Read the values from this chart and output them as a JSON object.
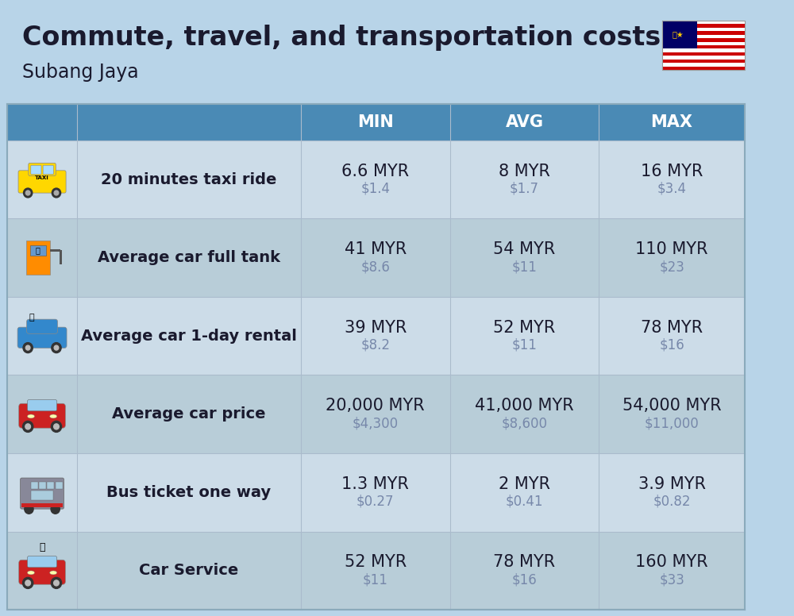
{
  "title": "Commute, travel, and transportation costs",
  "subtitle": "Subang Jaya",
  "background_color": "#b8d4e8",
  "header_bg_color": "#4a8ab5",
  "header_text_color": "#ffffff",
  "row_color_odd": "#ccdce8",
  "row_color_even": "#b8cdd8",
  "col_header_labels": [
    "MIN",
    "AVG",
    "MAX"
  ],
  "rows": [
    {
      "label": "20 minutes taxi ride",
      "min_myr": "6.6 MYR",
      "min_usd": "$1.4",
      "avg_myr": "8 MYR",
      "avg_usd": "$1.7",
      "max_myr": "16 MYR",
      "max_usd": "$3.4"
    },
    {
      "label": "Average car full tank",
      "min_myr": "41 MYR",
      "min_usd": "$8.6",
      "avg_myr": "54 MYR",
      "avg_usd": "$11",
      "max_myr": "110 MYR",
      "max_usd": "$23"
    },
    {
      "label": "Average car 1-day rental",
      "min_myr": "39 MYR",
      "min_usd": "$8.2",
      "avg_myr": "52 MYR",
      "avg_usd": "$11",
      "max_myr": "78 MYR",
      "max_usd": "$16"
    },
    {
      "label": "Average car price",
      "min_myr": "20,000 MYR",
      "min_usd": "$4,300",
      "avg_myr": "41,000 MYR",
      "avg_usd": "$8,600",
      "max_myr": "54,000 MYR",
      "max_usd": "$11,000"
    },
    {
      "label": "Bus ticket one way",
      "min_myr": "1.3 MYR",
      "min_usd": "$0.27",
      "avg_myr": "2 MYR",
      "avg_usd": "$0.41",
      "max_myr": "3.9 MYR",
      "max_usd": "$0.82"
    },
    {
      "label": "Car Service",
      "min_myr": "52 MYR",
      "min_usd": "$11",
      "avg_myr": "78 MYR",
      "avg_usd": "$16",
      "max_myr": "160 MYR",
      "max_usd": "$33"
    }
  ],
  "title_fontsize": 24,
  "subtitle_fontsize": 17,
  "header_fontsize": 15,
  "label_fontsize": 14,
  "value_fontsize": 15,
  "usd_fontsize": 12,
  "text_color": "#1a1a2e",
  "usd_color": "#7788aa",
  "border_color": "#8aaabb",
  "line_color": "#aabbcc"
}
